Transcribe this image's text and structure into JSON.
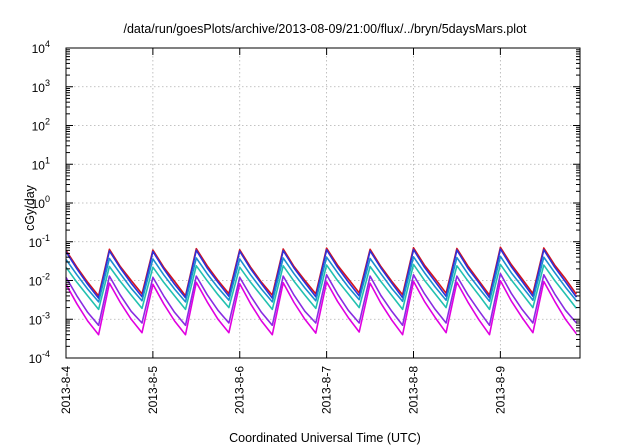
{
  "chart_data": {
    "type": "line",
    "title": "/data/run/goesPlots/archive/2013-08-09/21:00/flux/../bryn/5daysMars.plot",
    "xlabel": "Coordinated Universal Time (UTC)",
    "ylabel": "cGy/day",
    "xscale": "time",
    "yscale": "log",
    "xlim": [
      "2013-08-04T00:00",
      "2013-08-09T22:00"
    ],
    "ylim": [
      0.0001,
      10000
    ],
    "x_ticks": [
      "2013-8-4",
      "2013-8-5",
      "2013-8-6",
      "2013-8-7",
      "2013-8-8",
      "2013-8-9"
    ],
    "y_ticks": [
      {
        "base": "10",
        "exp": "-4"
      },
      {
        "base": "10",
        "exp": "-3"
      },
      {
        "base": "10",
        "exp": "-2"
      },
      {
        "base": "10",
        "exp": "-1"
      },
      {
        "base": "10",
        "exp": "0"
      },
      {
        "base": "10",
        "exp": "1"
      },
      {
        "base": "10",
        "exp": "2"
      },
      {
        "base": "10",
        "exp": "3"
      },
      {
        "base": "10",
        "exp": "4"
      }
    ],
    "grid": true,
    "legend": "none",
    "sample_interval_hours": 3,
    "series": [
      {
        "color": "#d4141e",
        "values": [
          0.06,
          0.022,
          0.009,
          0.004,
          0.064,
          0.023,
          0.01,
          0.0045,
          0.061,
          0.022,
          0.0095,
          0.004,
          0.066,
          0.024,
          0.01,
          0.0046,
          0.062,
          0.022,
          0.009,
          0.0042,
          0.065,
          0.023,
          0.01,
          0.0045,
          0.068,
          0.025,
          0.011,
          0.0048,
          0.064,
          0.023,
          0.0095,
          0.0043,
          0.07,
          0.025,
          0.011,
          0.0047,
          0.067,
          0.024,
          0.01,
          0.0042,
          0.072,
          0.026,
          0.011,
          0.0046,
          0.069,
          0.025,
          0.011,
          0.0044
        ]
      },
      {
        "color": "#2f2fd8",
        "values": [
          0.055,
          0.02,
          0.008,
          0.0035,
          0.058,
          0.021,
          0.0085,
          0.0038,
          0.056,
          0.02,
          0.008,
          0.0036,
          0.06,
          0.021,
          0.009,
          0.0039,
          0.057,
          0.02,
          0.0082,
          0.0035,
          0.059,
          0.021,
          0.0088,
          0.0038,
          0.062,
          0.022,
          0.0092,
          0.004,
          0.058,
          0.021,
          0.0085,
          0.0036,
          0.063,
          0.022,
          0.0093,
          0.0039,
          0.061,
          0.021,
          0.009,
          0.0036,
          0.065,
          0.023,
          0.0095,
          0.0039,
          0.062,
          0.022,
          0.0092,
          0.0037
        ]
      },
      {
        "color": "#1a8fd0",
        "values": [
          0.035,
          0.014,
          0.006,
          0.0028,
          0.037,
          0.015,
          0.0063,
          0.003,
          0.036,
          0.014,
          0.006,
          0.0028,
          0.038,
          0.015,
          0.0065,
          0.0031,
          0.036,
          0.014,
          0.006,
          0.0028,
          0.038,
          0.015,
          0.0064,
          0.003,
          0.04,
          0.016,
          0.0068,
          0.0032,
          0.037,
          0.015,
          0.0062,
          0.0029,
          0.041,
          0.016,
          0.0068,
          0.0031,
          0.039,
          0.015,
          0.0065,
          0.0029,
          0.042,
          0.016,
          0.007,
          0.0031,
          0.04,
          0.016,
          0.0067,
          0.003
        ]
      },
      {
        "color": "#22c1b0",
        "values": [
          0.022,
          0.009,
          0.004,
          0.0018,
          0.023,
          0.0095,
          0.0042,
          0.0019,
          0.022,
          0.009,
          0.004,
          0.0018,
          0.024,
          0.0098,
          0.0043,
          0.002,
          0.022,
          0.009,
          0.004,
          0.0018,
          0.024,
          0.0096,
          0.0042,
          0.0019,
          0.025,
          0.01,
          0.0045,
          0.002,
          0.023,
          0.0094,
          0.0041,
          0.0018,
          0.026,
          0.0102,
          0.0045,
          0.002,
          0.024,
          0.0098,
          0.0043,
          0.0018,
          0.026,
          0.0104,
          0.0046,
          0.002,
          0.025,
          0.01,
          0.0044,
          0.0019
        ]
      },
      {
        "color": "#8a2be2",
        "values": [
          0.012,
          0.004,
          0.0015,
          0.0007,
          0.013,
          0.0042,
          0.0016,
          0.0008,
          0.012,
          0.004,
          0.0015,
          0.0007,
          0.013,
          0.0043,
          0.0017,
          0.0008,
          0.012,
          0.004,
          0.0015,
          0.0007,
          0.013,
          0.0042,
          0.0016,
          0.0008,
          0.014,
          0.0045,
          0.0017,
          0.0008,
          0.013,
          0.0041,
          0.0016,
          0.0007,
          0.014,
          0.0046,
          0.0018,
          0.0008,
          0.013,
          0.0043,
          0.0017,
          0.0007,
          0.015,
          0.0047,
          0.0018,
          0.0008,
          0.014,
          0.0045,
          0.0017,
          0.0008
        ]
      },
      {
        "color": "#e100e1",
        "values": [
          0.008,
          0.0025,
          0.0009,
          0.0004,
          0.0085,
          0.0027,
          0.001,
          0.00045,
          0.008,
          0.0025,
          0.0009,
          0.0004,
          0.009,
          0.0028,
          0.001,
          0.00045,
          0.0082,
          0.0025,
          0.0009,
          0.0004,
          0.0088,
          0.0027,
          0.001,
          0.00044,
          0.0092,
          0.0029,
          0.0011,
          0.00047,
          0.0085,
          0.0026,
          0.00095,
          0.0004,
          0.0095,
          0.0029,
          0.0011,
          0.00045,
          0.009,
          0.0028,
          0.001,
          0.0004,
          0.0098,
          0.003,
          0.0011,
          0.00045,
          0.0094,
          0.0029,
          0.001,
          0.00042
        ]
      }
    ]
  }
}
